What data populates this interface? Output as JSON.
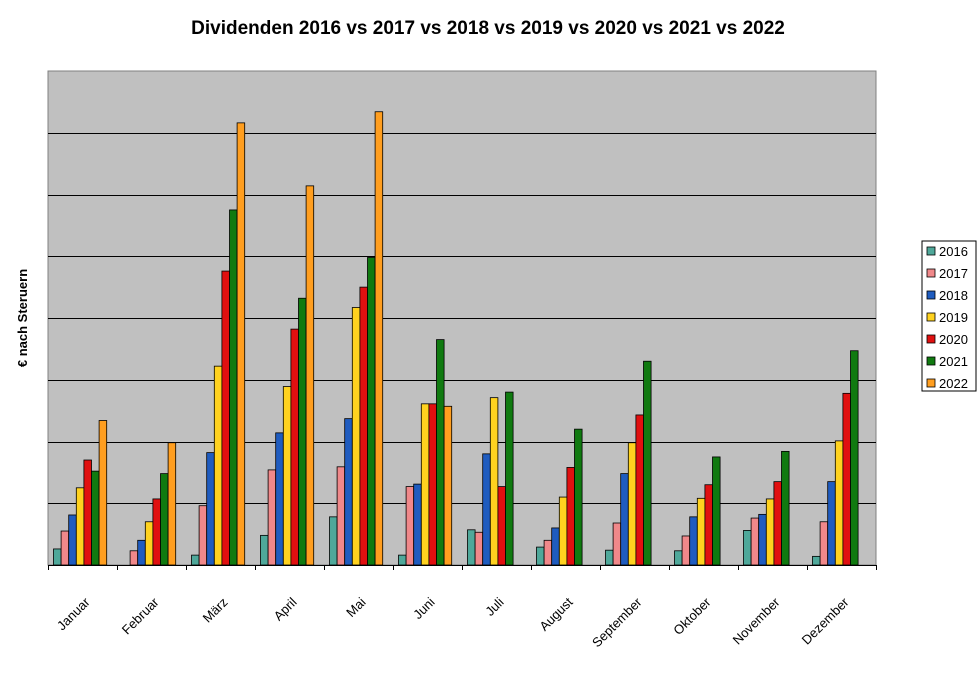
{
  "chart_data": {
    "type": "bar",
    "title": "Dividenden 2016 vs 2017 vs 2018 vs 2019 vs 2020 vs 2021 vs 2022",
    "ylabel": "€ nach Steruern",
    "xlabel": "",
    "ylim": [
      0,
      8
    ],
    "grid": true,
    "legend_position": "right",
    "categories": [
      "Januar",
      "Februar",
      "März",
      "April",
      "Mai",
      "Juni",
      "Juli",
      "August",
      "September",
      "Oktober",
      "November",
      "Dezember"
    ],
    "series": [
      {
        "name": "2016",
        "color": "#4fa89a",
        "values": [
          0.26,
          0.0,
          0.16,
          0.48,
          0.78,
          0.16,
          0.57,
          0.29,
          0.24,
          0.23,
          0.56,
          0.14
        ]
      },
      {
        "name": "2017",
        "color": "#f0888a",
        "values": [
          0.55,
          0.23,
          0.96,
          1.54,
          1.59,
          1.27,
          0.53,
          0.4,
          0.68,
          0.47,
          0.76,
          0.7
        ]
      },
      {
        "name": "2018",
        "color": "#1f5cbf",
        "values": [
          0.81,
          0.4,
          1.82,
          2.14,
          2.37,
          1.31,
          1.8,
          0.6,
          1.48,
          0.78,
          0.82,
          1.35
        ]
      },
      {
        "name": "2019",
        "color": "#ffd21f",
        "values": [
          1.25,
          0.7,
          3.22,
          2.89,
          4.17,
          2.61,
          2.71,
          1.1,
          1.98,
          1.08,
          1.07,
          2.01
        ]
      },
      {
        "name": "2020",
        "color": "#e01010",
        "values": [
          1.7,
          1.07,
          4.76,
          3.82,
          4.5,
          2.61,
          1.27,
          1.58,
          2.43,
          1.3,
          1.35,
          2.78
        ]
      },
      {
        "name": "2021",
        "color": "#107a10",
        "values": [
          1.52,
          1.48,
          5.75,
          4.32,
          4.98,
          3.65,
          2.8,
          2.2,
          3.3,
          1.75,
          1.84,
          3.47
        ]
      },
      {
        "name": "2022",
        "color": "#ff9e1f",
        "values": [
          2.34,
          1.98,
          7.16,
          6.14,
          7.34,
          2.57,
          0.0,
          0.0,
          0.0,
          0.0,
          0.0,
          0.0
        ]
      }
    ]
  }
}
